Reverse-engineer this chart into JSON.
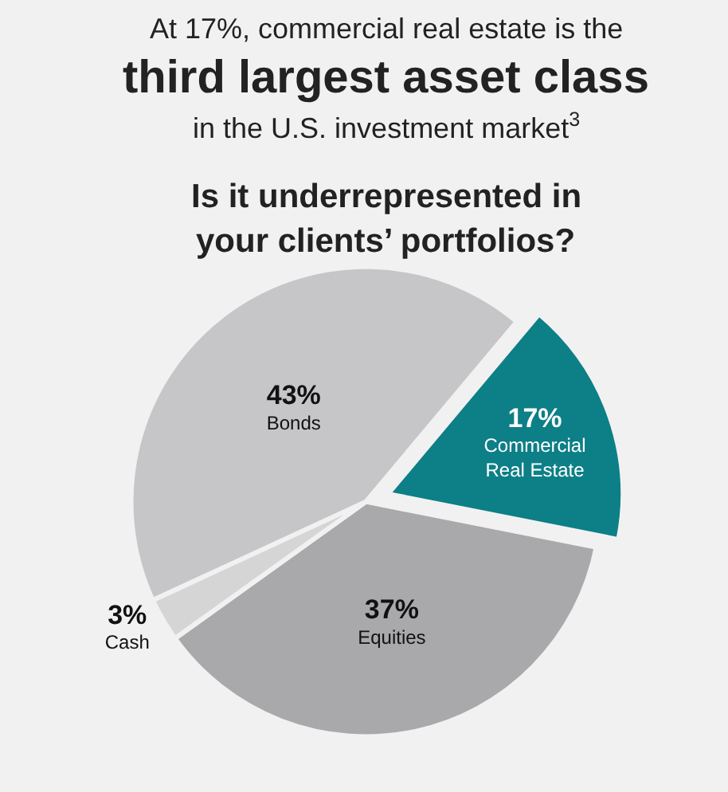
{
  "chart_data": {
    "type": "pie",
    "title": "At 17%, commercial real estate is the\nthird largest asset class\nin the U.S. investment market$^{3}$",
    "subtitle": "Is it underrepresented in\nyour clients’ portfolios?",
    "categories": [
      "Commercial Real Estate",
      "Equities",
      "Cash",
      "Bonds"
    ],
    "values": [
      17,
      37,
      3,
      43
    ],
    "value_labels": [
      "17%",
      "37%",
      "3%",
      "43%"
    ],
    "colors": [
      "#0d7f87",
      "#a9a8ab",
      "#d6d5d6",
      "#c6c5c7"
    ],
    "legend": false
  }
}
